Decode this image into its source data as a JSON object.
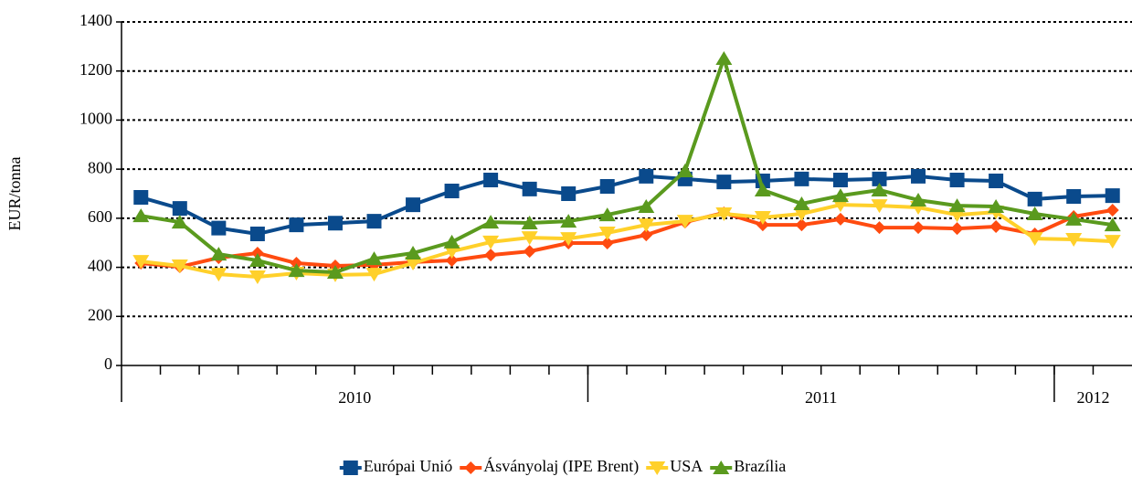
{
  "chart_data": {
    "type": "line",
    "y_label": "EUR/tonna",
    "categories": [
      null,
      null,
      null,
      null,
      null,
      null,
      null,
      null,
      null,
      null,
      null,
      null,
      null,
      null,
      null,
      null,
      null,
      null,
      null,
      null,
      null,
      null,
      null,
      null,
      null,
      null
    ],
    "groups": [
      {
        "label": "2010",
        "count": 12
      },
      {
        "label": "2011",
        "count": 12
      },
      {
        "label": "2012",
        "count": 2
      }
    ],
    "series": [
      {
        "name": "Európai Unió",
        "color": "#0a4a8c",
        "marker": "square",
        "values": [
          685,
          640,
          560,
          536,
          573,
          580,
          588,
          655,
          711,
          756,
          719,
          700,
          730,
          771,
          760,
          748,
          752,
          760,
          756,
          760,
          771,
          756,
          752,
          678,
          689,
          692
        ]
      },
      {
        "name": "Ásványolaj (IPE Brent)",
        "color": "#ff4b10",
        "marker": "diamond",
        "values": [
          417,
          402,
          439,
          458,
          417,
          406,
          410,
          421,
          428,
          450,
          465,
          499,
          499,
          532,
          584,
          622,
          573,
          573,
          596,
          562,
          562,
          558,
          566,
          536,
          607,
          633
        ]
      },
      {
        "name": "USA",
        "color": "#ffd02a",
        "marker": "triangle-down",
        "values": [
          424,
          406,
          372,
          361,
          376,
          369,
          372,
          417,
          465,
          503,
          521,
          517,
          540,
          573,
          588,
          618,
          603,
          618,
          655,
          651,
          644,
          614,
          625,
          517,
          514,
          506
        ]
      },
      {
        "name": "Brazília",
        "color": "#5a9a1e",
        "marker": "triangle-up",
        "values": [
          610,
          584,
          454,
          428,
          387,
          380,
          435,
          458,
          503,
          584,
          581,
          588,
          614,
          648,
          793,
          1251,
          715,
          659,
          692,
          715,
          674,
          651,
          648,
          618,
          596,
          573
        ]
      }
    ],
    "ylim": [
      0,
      1400
    ],
    "yticks": [
      0,
      200,
      400,
      600,
      800,
      1000,
      1200,
      1400
    ],
    "grid": true,
    "legend": "bottom"
  }
}
